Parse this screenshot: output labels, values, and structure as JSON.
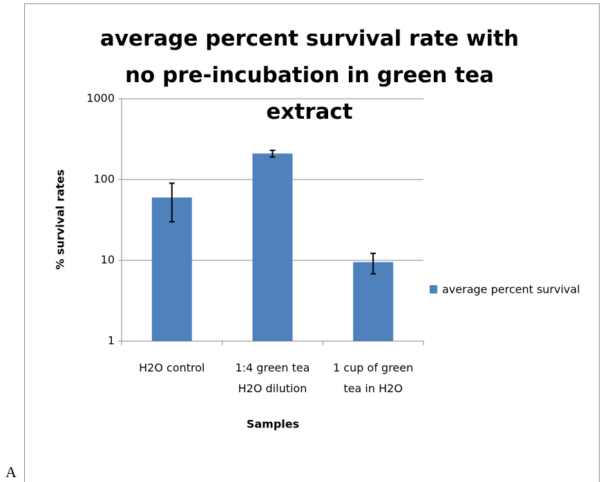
{
  "panel_label": "A",
  "chart_data": {
    "type": "bar",
    "title": "average percent survival rate with no pre-incubation in green tea extract",
    "x_label": "Samples",
    "y_label": "% survival rates",
    "categories": [
      "H2O control",
      "1:4 green tea H2O dilution",
      "1 cup of green tea in H2O"
    ],
    "series": [
      {
        "name": "average percent survival",
        "color": "#4f81bd",
        "values": [
          60,
          210,
          9.5
        ],
        "errors": [
          30,
          20,
          2.7
        ]
      }
    ],
    "log_scale": true,
    "ylim": [
      1,
      1000
    ],
    "yticks": [
      1,
      10,
      100,
      1000
    ],
    "grid": true,
    "legend": "right"
  }
}
